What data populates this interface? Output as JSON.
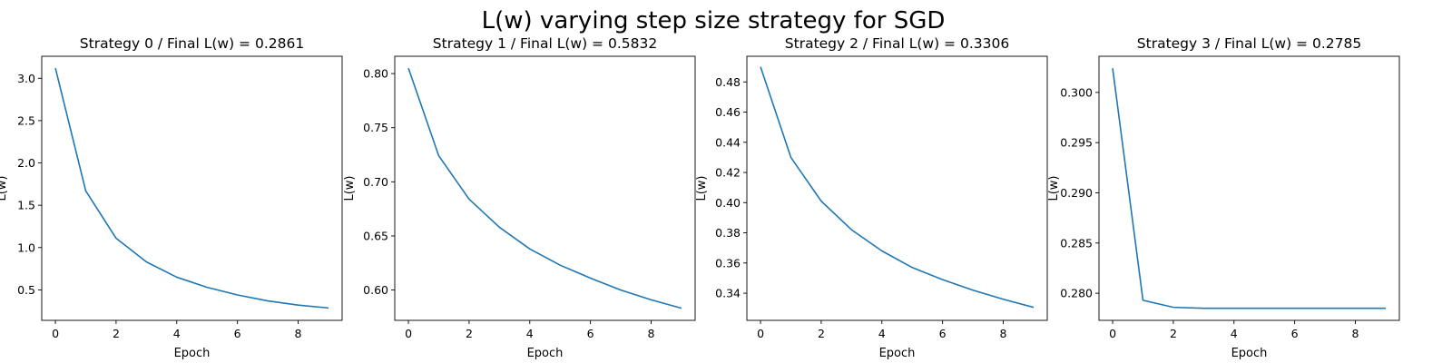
{
  "figure": {
    "suptitle": "L(w) varying step size strategy for SGD"
  },
  "colors": {
    "line": "#1f77b4",
    "axes": "#000000",
    "background": "#ffffff"
  },
  "chart_data": [
    {
      "type": "line",
      "title": "Strategy 0 / Final L(w) = 0.2861",
      "xlabel": "Epoch",
      "ylabel": "L(w)",
      "xlim": [
        -0.45,
        9.45
      ],
      "ylim": [
        0.14,
        3.26
      ],
      "xticks": [
        0,
        2,
        4,
        6,
        8
      ],
      "yticks": [
        0.5,
        1.0,
        1.5,
        2.0,
        2.5,
        3.0
      ],
      "ytick_labels": [
        "0.5",
        "1.0",
        "1.5",
        "2.0",
        "2.5",
        "3.0"
      ],
      "grid": false,
      "x": [
        0,
        1,
        2,
        3,
        4,
        5,
        6,
        7,
        8,
        9
      ],
      "series": [
        {
          "values": [
            3.12,
            1.67,
            1.11,
            0.83,
            0.65,
            0.53,
            0.44,
            0.37,
            0.32,
            0.2861
          ]
        }
      ]
    },
    {
      "type": "line",
      "title": "Strategy 1 / Final L(w) = 0.5832",
      "xlabel": "Epoch",
      "ylabel": "L(w)",
      "xlim": [
        -0.45,
        9.45
      ],
      "ylim": [
        0.572,
        0.816
      ],
      "xticks": [
        0,
        2,
        4,
        6,
        8
      ],
      "yticks": [
        0.6,
        0.65,
        0.7,
        0.75,
        0.8
      ],
      "ytick_labels": [
        "0.60",
        "0.65",
        "0.70",
        "0.75",
        "0.80"
      ],
      "grid": false,
      "x": [
        0,
        1,
        2,
        3,
        4,
        5,
        6,
        7,
        8,
        9
      ],
      "series": [
        {
          "values": [
            0.805,
            0.724,
            0.684,
            0.658,
            0.638,
            0.623,
            0.611,
            0.6,
            0.591,
            0.5832
          ]
        }
      ]
    },
    {
      "type": "line",
      "title": "Strategy 2 / Final L(w) = 0.3306",
      "xlabel": "Epoch",
      "ylabel": "L(w)",
      "xlim": [
        -0.45,
        9.45
      ],
      "ylim": [
        0.322,
        0.497
      ],
      "xticks": [
        0,
        2,
        4,
        6,
        8
      ],
      "yticks": [
        0.34,
        0.36,
        0.38,
        0.4,
        0.42,
        0.44,
        0.46,
        0.48
      ],
      "ytick_labels": [
        "0.34",
        "0.36",
        "0.38",
        "0.40",
        "0.42",
        "0.44",
        "0.46",
        "0.48"
      ],
      "grid": false,
      "x": [
        0,
        1,
        2,
        3,
        4,
        5,
        6,
        7,
        8,
        9
      ],
      "series": [
        {
          "values": [
            0.49,
            0.43,
            0.401,
            0.382,
            0.368,
            0.357,
            0.349,
            0.342,
            0.336,
            0.3306
          ]
        }
      ]
    },
    {
      "type": "line",
      "title": "Strategy 3 / Final L(w) = 0.2785",
      "xlabel": "Epoch",
      "ylabel": "L(w)",
      "xlim": [
        -0.45,
        9.45
      ],
      "ylim": [
        0.2773,
        0.3036
      ],
      "xticks": [
        0,
        2,
        4,
        6,
        8
      ],
      "yticks": [
        0.28,
        0.285,
        0.29,
        0.295,
        0.3
      ],
      "ytick_labels": [
        "0.280",
        "0.285",
        "0.290",
        "0.295",
        "0.300"
      ],
      "grid": false,
      "x": [
        0,
        1,
        2,
        3,
        4,
        5,
        6,
        7,
        8,
        9
      ],
      "series": [
        {
          "values": [
            0.3024,
            0.2793,
            0.2786,
            0.2785,
            0.2785,
            0.2785,
            0.2785,
            0.2785,
            0.2785,
            0.2785
          ]
        }
      ]
    }
  ]
}
